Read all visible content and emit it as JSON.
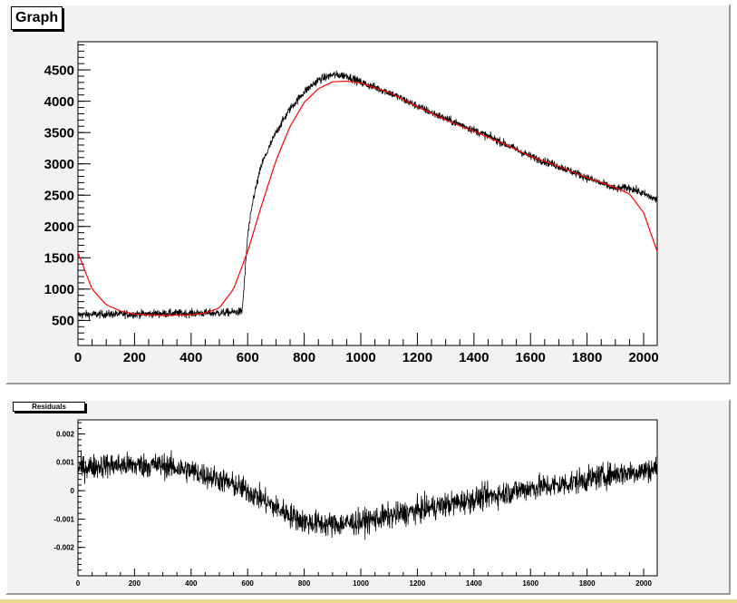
{
  "top_title": "Graph",
  "bottom_title": "Residuals",
  "colors": {
    "data": "#000000",
    "fit": "#ff0000",
    "pad_background": "#f2f2f2",
    "frame_background": "#ffffff"
  },
  "chart_data": [
    {
      "type": "line",
      "title": "Graph",
      "xlim": [
        0,
        2048
      ],
      "ylim": [
        100,
        4950
      ],
      "x_ticks": [
        0,
        200,
        400,
        600,
        800,
        1000,
        1200,
        1400,
        1600,
        1800,
        2000
      ],
      "y_ticks": [
        500,
        1000,
        1500,
        2000,
        2500,
        3000,
        3500,
        4000,
        4500
      ],
      "x_tick_labels": [
        "0",
        "200",
        "400",
        "600",
        "800",
        "1000",
        "1200",
        "1400",
        "1600",
        "1800",
        "2000"
      ],
      "y_tick_labels": [
        "500",
        "1000",
        "1500",
        "2000",
        "2500",
        "3000",
        "3500",
        "4000",
        "4500"
      ],
      "grid": false,
      "series": [
        {
          "kind": "data",
          "color": "#000000",
          "noise": 60,
          "x": [
            0,
            100,
            200,
            300,
            400,
            500,
            580,
            585,
            600,
            620,
            650,
            700,
            750,
            800,
            850,
            900,
            950,
            1000,
            1100,
            1200,
            1300,
            1400,
            1500,
            1600,
            1700,
            1800,
            1900,
            1950,
            2000,
            2048
          ],
          "y": [
            590,
            600,
            600,
            610,
            615,
            620,
            640,
            900,
            1850,
            2450,
            3000,
            3500,
            3880,
            4150,
            4340,
            4420,
            4410,
            4300,
            4140,
            3920,
            3720,
            3540,
            3340,
            3120,
            2960,
            2780,
            2600,
            2620,
            2520,
            2420
          ]
        },
        {
          "kind": "fit",
          "color": "#ff0000",
          "x": [
            0,
            50,
            100,
            150,
            200,
            300,
            400,
            450,
            500,
            550,
            600,
            650,
            700,
            750,
            800,
            850,
            900,
            950,
            1000,
            1100,
            1200,
            1300,
            1400,
            1500,
            1600,
            1700,
            1800,
            1900,
            1950,
            2000,
            2048
          ],
          "y": [
            1580,
            1000,
            750,
            650,
            600,
            580,
            590,
            620,
            700,
            1000,
            1600,
            2350,
            3050,
            3600,
            3980,
            4200,
            4310,
            4320,
            4290,
            4140,
            3910,
            3700,
            3520,
            3330,
            3120,
            2960,
            2780,
            2620,
            2520,
            2220,
            1600
          ]
        }
      ]
    },
    {
      "type": "line",
      "title": "Residuals",
      "xlim": [
        0,
        2048
      ],
      "ylim": [
        -0.003,
        0.0025
      ],
      "x_ticks": [
        0,
        200,
        400,
        600,
        800,
        1000,
        1200,
        1400,
        1600,
        1800,
        2000
      ],
      "y_ticks": [
        -0.002,
        -0.001,
        0,
        0.001,
        0.002
      ],
      "x_tick_labels": [
        "0",
        "200",
        "400",
        "600",
        "800",
        "1000",
        "1200",
        "1400",
        "1600",
        "1800",
        "2000"
      ],
      "y_tick_labels": [
        "-0.002",
        "-0.001",
        "0",
        "0.001",
        "0.002"
      ],
      "grid": false,
      "series": [
        {
          "kind": "data",
          "color": "#000000",
          "noise": 0.0004,
          "x": [
            0,
            100,
            200,
            300,
            400,
            500,
            600,
            700,
            800,
            900,
            1000,
            1100,
            1200,
            1300,
            1400,
            1500,
            1600,
            1700,
            1800,
            1900,
            2000,
            2048
          ],
          "y": [
            0.0008,
            0.0009,
            0.0009,
            0.0009,
            0.0007,
            0.0004,
            0.0,
            -0.0006,
            -0.0011,
            -0.0012,
            -0.0011,
            -0.0009,
            -0.0007,
            -0.0005,
            -0.0003,
            -0.0001,
            0.0001,
            0.0002,
            0.0004,
            0.0006,
            0.0007,
            0.0008
          ]
        }
      ]
    }
  ]
}
